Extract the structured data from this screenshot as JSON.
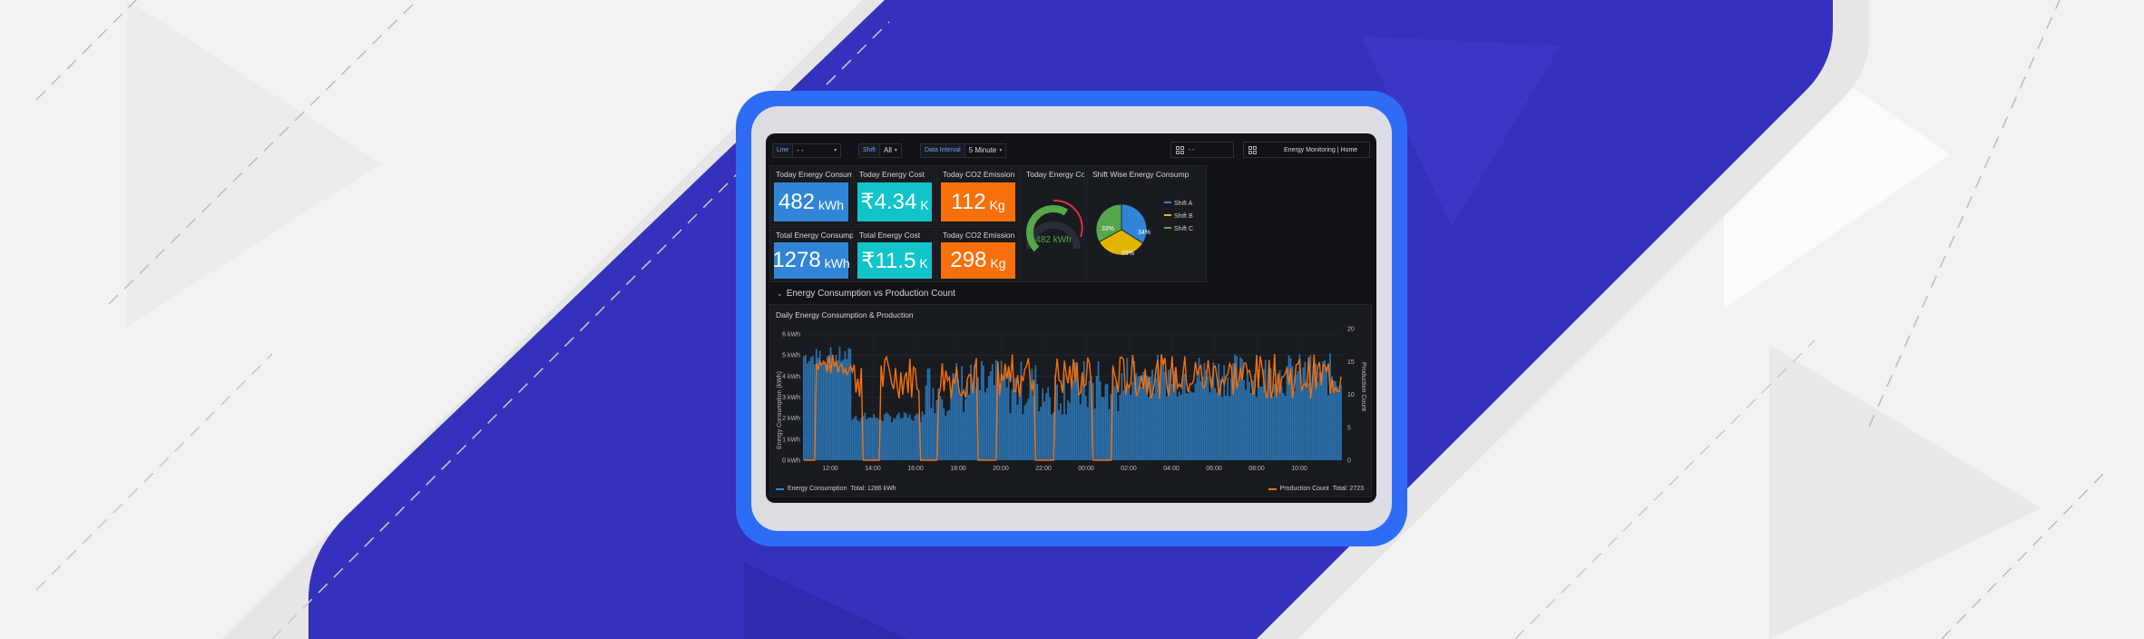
{
  "colors": {
    "blue": "#3185d6",
    "cyan": "#11c4c9",
    "orange": "#f7700c",
    "green": "#56a64b",
    "yellow": "#e0b400",
    "red": "#e02f44"
  },
  "toolbar": {
    "line_label": "Line",
    "line_value": "- -",
    "shift_label": "Shift",
    "shift_value": "All",
    "interval_label": "Data Interval",
    "interval_value": "5 Minute",
    "picker_value": "- -",
    "breadcrumb": "Energy Monitoring | Home"
  },
  "stats": [
    {
      "title": "Today Energy Consumption",
      "value": "482",
      "unit": "kWh",
      "color": "blue"
    },
    {
      "title": "Today Energy Cost",
      "value": "₹4.34",
      "unit": "K",
      "color": "cyan"
    },
    {
      "title": "Today CO2 Emission",
      "value": "112",
      "unit": "Kg",
      "color": "orange"
    },
    {
      "title": "Total Energy Consumption",
      "value": "1278",
      "unit": "kWh",
      "color": "blue"
    },
    {
      "title": "Total Energy Cost",
      "value": "₹11.5",
      "unit": "K",
      "color": "cyan"
    },
    {
      "title": "Today CO2 Emission",
      "value": "298",
      "unit": "Kg",
      "color": "orange"
    }
  ],
  "gauge": {
    "title": "Today Energy Consu",
    "value_text": "482 kWh",
    "fraction": 0.62
  },
  "pie": {
    "title": "Shift Wise Energy Consump",
    "legend": [
      "Shift A",
      "Shift B",
      "Shift C"
    ],
    "slices": [
      {
        "name": "Shift A",
        "percent": 34
      },
      {
        "name": "Shift B",
        "percent": 33
      },
      {
        "name": "Shift C",
        "percent": 33
      }
    ],
    "labels": [
      "34%",
      "33%",
      "33%"
    ]
  },
  "section_title": "Energy Consumption vs Production Count",
  "chart_data": {
    "type": "bar",
    "title": "Daily Energy Consumption & Production",
    "ylabel": "Energy Consumption (kWh)",
    "y2label": "Production Count",
    "ylim": [
      0,
      6
    ],
    "y2lim": [
      0,
      20
    ],
    "yticks": [
      "0 kWh",
      "1 kWh",
      "2 kWh",
      "3 kWh",
      "4 kWh",
      "5 kWh",
      "6 kWh"
    ],
    "y2ticks": [
      "0",
      "5",
      "10",
      "15",
      "20"
    ],
    "x": [
      "12:00",
      "14:00",
      "16:00",
      "18:00",
      "20:00",
      "22:00",
      "00:00",
      "02:00",
      "04:00",
      "06:00",
      "08:00",
      "10:00"
    ],
    "series": [
      {
        "name": "Energy Consumption",
        "total": "Total: 1286 kWh"
      },
      {
        "name": "Production Count",
        "total": "Total: 2723"
      }
    ],
    "grid": true,
    "legend": "bottom"
  }
}
